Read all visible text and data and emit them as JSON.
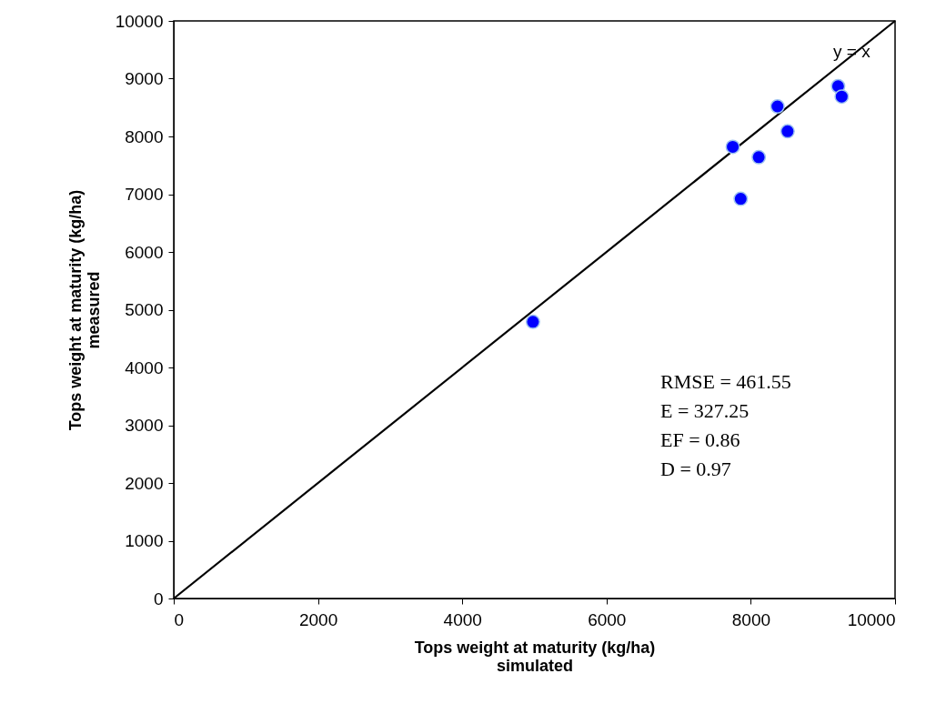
{
  "chart_data": {
    "type": "scatter",
    "xlabel": "Tops weight at maturity (kg/ha)\nsimulated",
    "ylabel": "Tops weight at maturity (kg/ha)\nmeasured",
    "x": [
      4980,
      7750,
      7860,
      8110,
      8370,
      8510,
      9210,
      9260
    ],
    "series": [
      {
        "color": "#0000ff",
        "values": [
          4790,
          7820,
          6920,
          7640,
          8520,
          8090,
          8870,
          8690
        ]
      },
      {
        "type": "line",
        "color": "#000000",
        "marker": "none",
        "x": [
          0,
          10000
        ],
        "values": [
          0,
          10000
        ]
      }
    ],
    "xlim": [
      0,
      10000
    ],
    "ylim": [
      0,
      10000
    ],
    "xticks": [
      0,
      2000,
      4000,
      6000,
      8000,
      10000
    ],
    "yticks": [
      0,
      1000,
      2000,
      3000,
      4000,
      5000,
      6000,
      7000,
      8000,
      9000,
      10000
    ],
    "grid": false,
    "marker": "circle",
    "line_style": "solid",
    "annotations": [
      {
        "text": "y = x",
        "x": 9400,
        "y": 9300
      },
      "RMSE = 461.55",
      "E = 327.25",
      "EF = 0.86",
      "D = 0.97"
    ]
  }
}
